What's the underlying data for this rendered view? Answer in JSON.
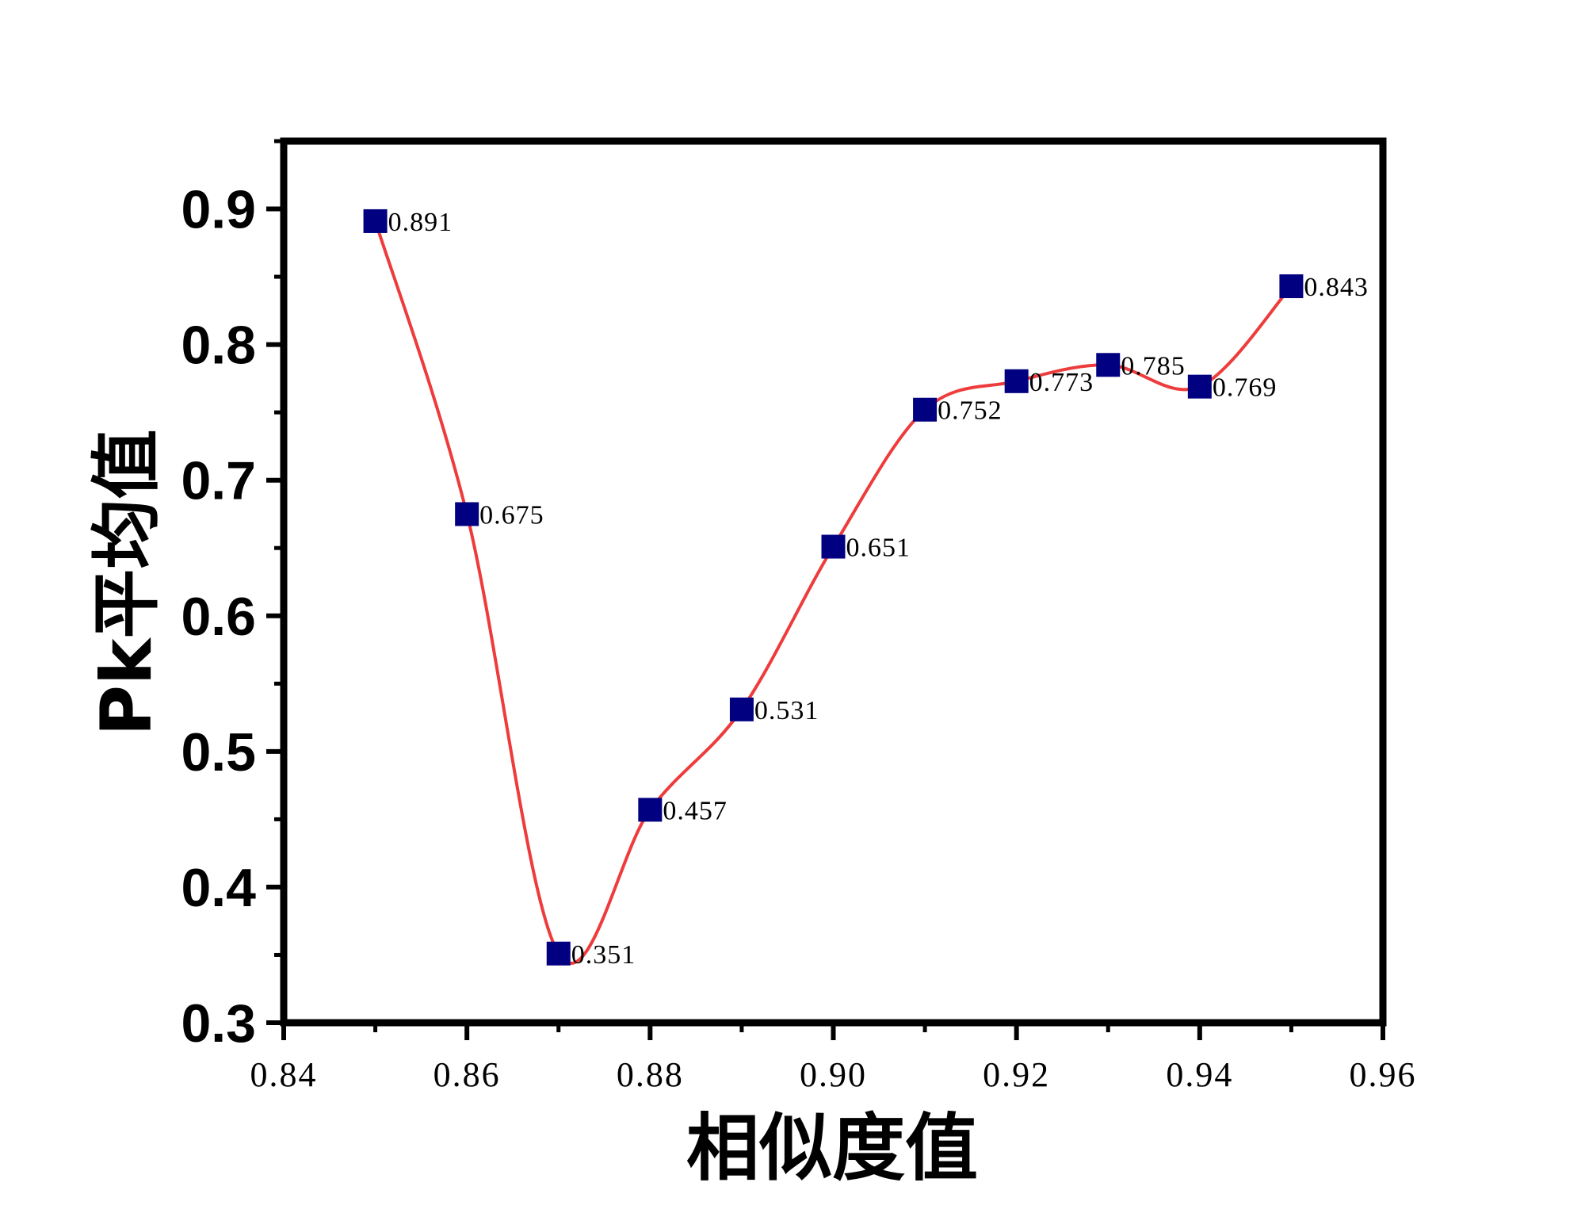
{
  "chart_data": {
    "type": "line",
    "x": [
      0.85,
      0.86,
      0.87,
      0.88,
      0.89,
      0.9,
      0.91,
      0.92,
      0.93,
      0.94,
      0.95
    ],
    "series": [
      {
        "values": [
          0.891,
          0.675,
          0.351,
          0.457,
          0.531,
          0.651,
          0.752,
          0.773,
          0.785,
          0.769,
          0.843
        ],
        "data_labels": [
          "0.891",
          "0.675",
          "0.351",
          "0.457",
          "0.531",
          "0.651",
          "0.752",
          "0.773",
          "0.785",
          "0.769",
          "0.843"
        ],
        "line_color": "#ee3b3b",
        "marker_color": "#000080",
        "marker": "square",
        "smooth": true
      }
    ],
    "xlabel": "相似度值",
    "ylabel": "Pk平均值",
    "xlim": [
      0.84,
      0.96
    ],
    "ylim": [
      0.3,
      0.95
    ],
    "xticks": [
      "0.84",
      "0.86",
      "0.88",
      "0.90",
      "0.92",
      "0.94",
      "0.96"
    ],
    "yticks": [
      "0.3",
      "0.4",
      "0.5",
      "0.6",
      "0.7",
      "0.8",
      "0.9"
    ],
    "grid": false,
    "legend": "none"
  }
}
